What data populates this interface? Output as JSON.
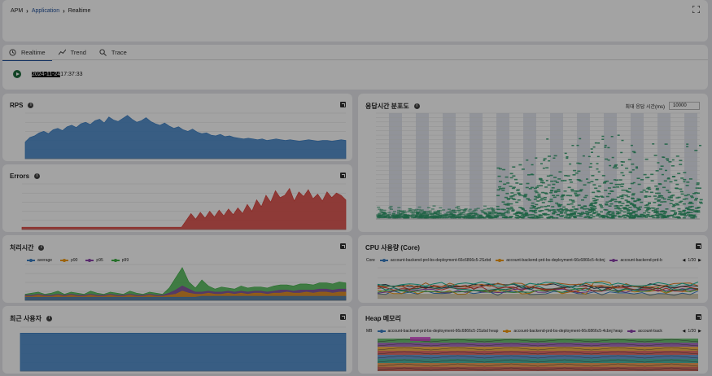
{
  "breadcrumb": {
    "items": [
      "APM",
      "Application",
      "Realtime"
    ]
  },
  "tabs": [
    {
      "label": "Realtime",
      "icon": "clock-icon"
    },
    {
      "label": "Trend",
      "icon": "trend-icon"
    },
    {
      "label": "Trace",
      "icon": "trace-search-icon"
    }
  ],
  "realtime": {
    "ts_selected": "2024-11-24",
    "ts_rest": "17:37:33"
  },
  "panels": {
    "rps": {
      "title": "RPS"
    },
    "errors": {
      "title": "Errors"
    },
    "latency": {
      "title": "처리시간",
      "legend": [
        "average",
        "p90",
        "p95",
        "p99"
      ]
    },
    "users": {
      "title": "최근 사용자"
    },
    "dist": {
      "title": "응답시간 분포도",
      "max_label": "최대 응답 시간(ms)",
      "max_value": "10000"
    },
    "cpu": {
      "title": "CPU 사용량 (Core)",
      "unit": "Core",
      "legend": [
        "account-backend-prd-bs-deployment-66c6866c5-2Szbd",
        "account-backend-prd-bs-deployment-66c6866c5-4cbnj",
        "account-backend-prd-b"
      ],
      "page": "1/20"
    },
    "heap": {
      "title": "Heap 메모리",
      "unit": "MB",
      "legend": [
        "account-backend-prd-bs-deployment-66c6866c5-2Szbd heap",
        "account-backend-prd-bs-deployment-66c6866c5-4cbnj heap",
        "account-back"
      ],
      "page": "1/20"
    }
  },
  "colors": {
    "rps": "#3b7fc4",
    "errors": "#d9403a",
    "users": "#3b7fc4",
    "dist": "#2e9a6a",
    "latency": [
      "#3b7fc4",
      "#f39c12",
      "#8e44ad",
      "#3cb043"
    ],
    "legend3": "#8e44ad"
  },
  "chart_data": [
    {
      "type": "area",
      "name": "RPS",
      "values": [
        22,
        28,
        30,
        34,
        36,
        33,
        38,
        40,
        37,
        42,
        44,
        41,
        46,
        48,
        45,
        50,
        52,
        47,
        55,
        51,
        49,
        53,
        57,
        52,
        48,
        50,
        54,
        49,
        46,
        44,
        47,
        43,
        40,
        42,
        38,
        36,
        39,
        35,
        33,
        34,
        31,
        30,
        32,
        29,
        30,
        28,
        27,
        26,
        27,
        26,
        25,
        26,
        24,
        25,
        26,
        25,
        24,
        25,
        24,
        23,
        24,
        25,
        24,
        23,
        24,
        24,
        23,
        24,
        25,
        24
      ]
    },
    {
      "type": "area",
      "name": "Errors",
      "values": [
        2,
        2,
        2,
        2,
        2,
        2,
        2,
        2,
        2,
        2,
        2,
        2,
        2,
        2,
        2,
        2,
        2,
        2,
        2,
        2,
        2,
        2,
        2,
        2,
        2,
        2,
        2,
        2,
        2,
        2,
        2,
        2,
        2,
        2,
        2,
        8,
        14,
        9,
        15,
        10,
        16,
        11,
        17,
        12,
        18,
        13,
        19,
        14,
        22,
        16,
        26,
        20,
        30,
        24,
        34,
        28,
        30,
        36,
        25,
        33,
        29,
        35,
        27,
        31,
        25,
        33,
        28,
        32,
        30,
        26
      ]
    },
    {
      "type": "line",
      "name": "latency",
      "series": [
        {
          "name": "average",
          "values": [
            3,
            3,
            3,
            3,
            3,
            3,
            3,
            3,
            3,
            3,
            3,
            3,
            3,
            3,
            3,
            3,
            3,
            3,
            3,
            3,
            3,
            3,
            3,
            3,
            3,
            3,
            3,
            4,
            4,
            4,
            4,
            4,
            4,
            4,
            4,
            4,
            4,
            4,
            4,
            4,
            4,
            4,
            4,
            4,
            4,
            4,
            4,
            4,
            4,
            4
          ]
        },
        {
          "name": "p90",
          "values": [
            4,
            4,
            5,
            4,
            4,
            5,
            4,
            5,
            4,
            4,
            5,
            4,
            4,
            5,
            4,
            4,
            5,
            4,
            4,
            5,
            4,
            4,
            5,
            6,
            9,
            7,
            6,
            6,
            7,
            6,
            6,
            7,
            6,
            7,
            6,
            7,
            7,
            6,
            7,
            7,
            8,
            7,
            7,
            8,
            7,
            8,
            8,
            7,
            8,
            8
          ]
        },
        {
          "name": "p95",
          "values": [
            5,
            5,
            6,
            5,
            5,
            6,
            5,
            6,
            5,
            5,
            6,
            5,
            5,
            6,
            5,
            5,
            6,
            5,
            5,
            6,
            5,
            5,
            7,
            10,
            14,
            11,
            8,
            8,
            9,
            8,
            8,
            9,
            8,
            9,
            8,
            9,
            9,
            8,
            9,
            10,
            10,
            9,
            10,
            10,
            10,
            11,
            11,
            10,
            11,
            11
          ]
        },
        {
          "name": "p99",
          "values": [
            6,
            7,
            8,
            6,
            7,
            9,
            6,
            8,
            7,
            6,
            9,
            7,
            6,
            8,
            7,
            6,
            9,
            7,
            6,
            8,
            7,
            6,
            12,
            22,
            32,
            18,
            12,
            20,
            14,
            11,
            13,
            12,
            11,
            14,
            12,
            13,
            13,
            12,
            14,
            15,
            15,
            14,
            16,
            16,
            15,
            17,
            17,
            16,
            18,
            17
          ]
        }
      ]
    },
    {
      "type": "area",
      "name": "최근 사용자",
      "values": [
        95,
        95,
        95,
        95,
        95,
        95,
        95,
        95,
        95,
        95
      ]
    }
  ]
}
